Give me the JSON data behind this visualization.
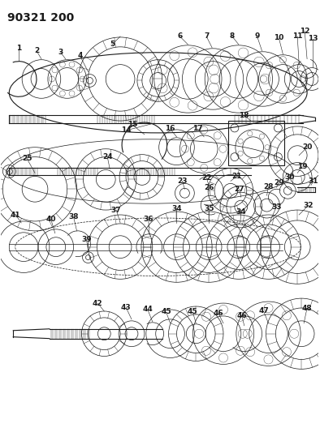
{
  "title": "90321 200",
  "bg_color": "#ffffff",
  "line_color": "#1a1a1a",
  "title_fontsize": 10,
  "label_fontsize": 6.5,
  "figsize": [
    3.94,
    5.33
  ],
  "dpi": 100
}
